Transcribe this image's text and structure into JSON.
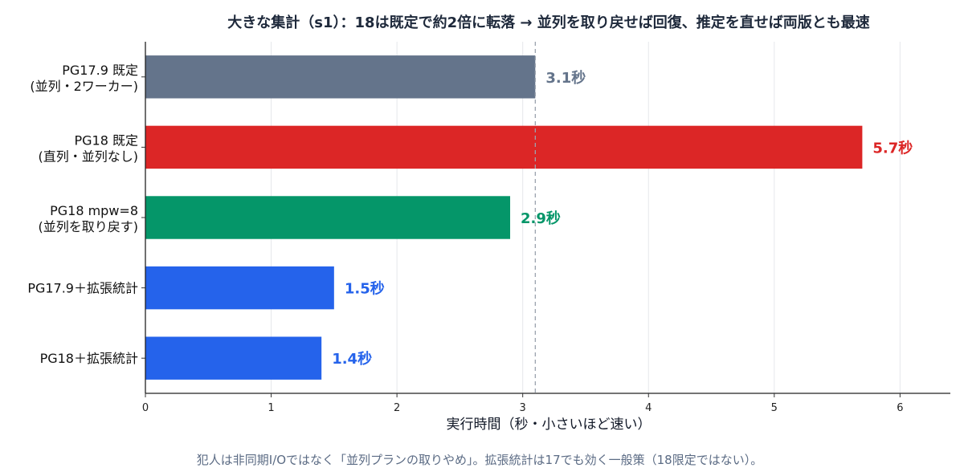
{
  "chart_data": {
    "type": "bar",
    "orientation": "horizontal",
    "title": "大きな集計（s1）：18は既定で約2倍に転落 → 並列を取り戻せば回復、推定を直せば両版とも最速",
    "xlabel": "実行時間（秒・小さいほど速い）",
    "ylabel": "",
    "xlim": [
      0,
      6.4
    ],
    "xticks": [
      "0",
      "1",
      "2",
      "3",
      "4",
      "5",
      "6"
    ],
    "grid": "vertical",
    "reference_line": {
      "x": 3.1,
      "style": "dashed"
    },
    "footnote": "犯人は非同期I/Oではなく「並列プランの取りやめ」。拡張統計は17でも効く一般策（18限定ではない）。",
    "categories": [
      {
        "line1": "PG17.9 既定",
        "line2": "(並列・2ワーカー)"
      },
      {
        "line1": "PG18 既定",
        "line2": "(直列・並列なし)"
      },
      {
        "line1": "PG18  mpw=8",
        "line2": "(並列を取り戻す)"
      },
      {
        "line1": "PG17.9＋拡張統計",
        "line2": ""
      },
      {
        "line1": "PG18＋拡張統計",
        "line2": ""
      }
    ],
    "values": [
      3.1,
      5.7,
      2.9,
      1.5,
      1.4
    ],
    "value_labels": [
      "3.1秒",
      "5.7秒",
      "2.9秒",
      "1.5秒",
      "1.4秒"
    ],
    "colors": [
      "#64748b",
      "#dc2626",
      "#059669",
      "#2563eb",
      "#2563eb"
    ]
  }
}
